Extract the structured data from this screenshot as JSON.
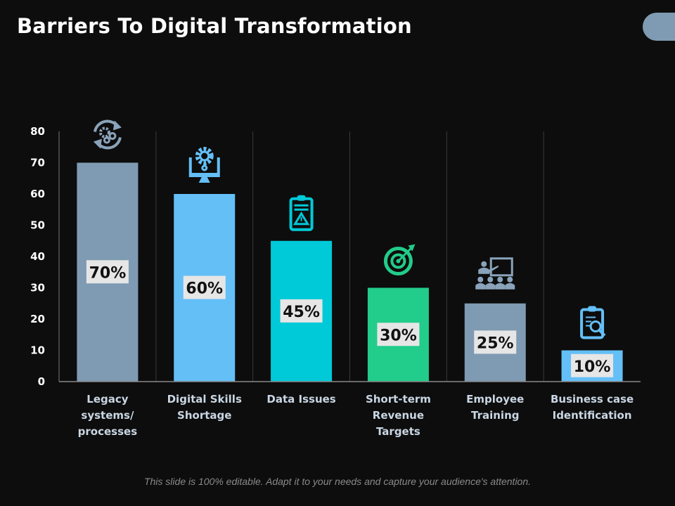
{
  "title": "Barriers To Digital Transformation",
  "footer": "This slide is 100% editable. Adapt it to your needs and capture your audience's attention.",
  "chart_data": {
    "type": "bar",
    "title": "",
    "xlabel": "",
    "ylabel": "",
    "ylim": [
      0,
      80
    ],
    "yticks": [
      0,
      10,
      20,
      30,
      40,
      50,
      60,
      70,
      80
    ],
    "grid": false,
    "categories": [
      [
        "Legacy",
        "systems/",
        "processes"
      ],
      [
        "Digital Skills",
        "Shortage"
      ],
      [
        "Data Issues"
      ],
      [
        "Short-term",
        "Revenue",
        "Targets"
      ],
      [
        "Employee",
        "Training"
      ],
      [
        "Business case",
        "Identification"
      ]
    ],
    "values": [
      70,
      60,
      45,
      30,
      25,
      10
    ],
    "data_labels": [
      "70%",
      "60%",
      "45%",
      "30%",
      "25%",
      "10%"
    ],
    "colors": [
      "#7f9bb3",
      "#64bff6",
      "#00c9d8",
      "#22cc8a",
      "#7f9bb3",
      "#64bff6"
    ],
    "icons": [
      "gears-refresh-icon",
      "monitor-gear-icon",
      "clipboard-warning-icon",
      "target-arrow-icon",
      "presentation-training-icon",
      "clipboard-search-icon"
    ]
  }
}
